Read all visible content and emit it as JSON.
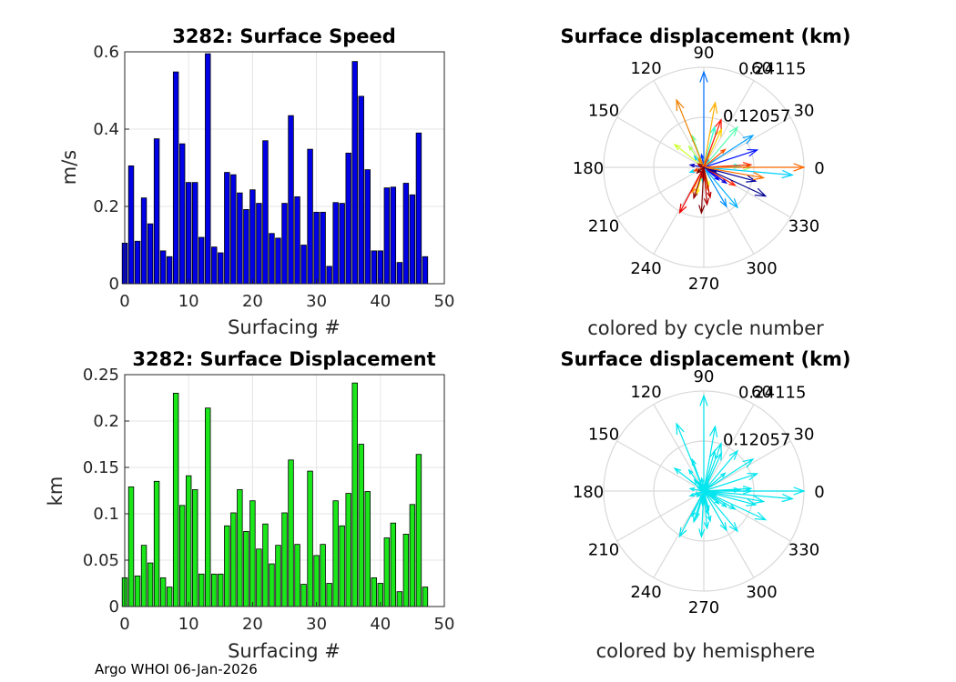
{
  "footer": "Argo WHOI 06-Jan-2026",
  "chart_data": [
    {
      "type": "bar",
      "title": "3282: Surface Speed",
      "xlabel": "Surfacing #",
      "ylabel": "m/s",
      "xlim": [
        0,
        50
      ],
      "ylim": [
        0,
        0.6
      ],
      "xticks": [
        "0",
        "10",
        "20",
        "30",
        "40",
        "50"
      ],
      "yticks": [
        "0",
        "0.2",
        "0.4",
        "0.6"
      ],
      "color": "#0000e6",
      "categories": [
        0,
        1,
        2,
        3,
        4,
        5,
        6,
        7,
        8,
        9,
        10,
        11,
        12,
        13,
        14,
        15,
        16,
        17,
        18,
        19,
        20,
        21,
        22,
        23,
        24,
        25,
        26,
        27,
        28,
        29,
        30,
        31,
        32,
        33,
        34,
        35,
        36,
        37,
        38,
        39,
        40,
        41,
        42,
        43,
        44,
        45,
        46,
        47
      ],
      "values": [
        0.105,
        0.305,
        0.11,
        0.222,
        0.155,
        0.375,
        0.085,
        0.07,
        0.548,
        0.362,
        0.262,
        0.262,
        0.12,
        0.595,
        0.095,
        0.08,
        0.288,
        0.282,
        0.235,
        0.192,
        0.243,
        0.208,
        0.37,
        0.13,
        0.118,
        0.208,
        0.435,
        0.225,
        0.1,
        0.348,
        0.185,
        0.185,
        0.045,
        0.21,
        0.208,
        0.338,
        0.575,
        0.485,
        0.295,
        0.085,
        0.085,
        0.248,
        0.25,
        0.055,
        0.26,
        0.23,
        0.39,
        0.07
      ]
    },
    {
      "type": "bar",
      "title": "3282: Surface Displacement",
      "xlabel": "Surfacing #",
      "ylabel": "km",
      "xlim": [
        0,
        50
      ],
      "ylim": [
        0,
        0.25
      ],
      "xticks": [
        "0",
        "10",
        "20",
        "30",
        "40",
        "50"
      ],
      "yticks": [
        "0",
        "0.05",
        "0.1",
        "0.15",
        "0.2",
        "0.25"
      ],
      "color": "#1ae61a",
      "categories": [
        0,
        1,
        2,
        3,
        4,
        5,
        6,
        7,
        8,
        9,
        10,
        11,
        12,
        13,
        14,
        15,
        16,
        17,
        18,
        19,
        20,
        21,
        22,
        23,
        24,
        25,
        26,
        27,
        28,
        29,
        30,
        31,
        32,
        33,
        34,
        35,
        36,
        37,
        38,
        39,
        40,
        41,
        42,
        43,
        44,
        45,
        46,
        47
      ],
      "values": [
        0.031,
        0.129,
        0.033,
        0.066,
        0.047,
        0.135,
        0.031,
        0.021,
        0.23,
        0.109,
        0.141,
        0.126,
        0.035,
        0.214,
        0.035,
        0.035,
        0.087,
        0.101,
        0.126,
        0.081,
        0.114,
        0.062,
        0.089,
        0.046,
        0.066,
        0.101,
        0.158,
        0.067,
        0.024,
        0.146,
        0.055,
        0.067,
        0.025,
        0.114,
        0.087,
        0.122,
        0.241,
        0.175,
        0.124,
        0.031,
        0.025,
        0.074,
        0.09,
        0.016,
        0.078,
        0.11,
        0.164,
        0.021
      ]
    },
    {
      "type": "polar-compass",
      "title": "Surface displacement (km)",
      "caption": "colored by cycle number",
      "rmax": 0.24115,
      "ring_labels": [
        "0.12057",
        "0.24115"
      ],
      "angle_labels": [
        "0",
        "30",
        "60",
        "90",
        "120",
        "150",
        "180",
        "210",
        "240",
        "270",
        "300",
        "330"
      ],
      "vectors": [
        {
          "r": 0.031,
          "angle": -20,
          "color": "#00008f"
        },
        {
          "r": 0.129,
          "angle": -15,
          "color": "#00009f"
        },
        {
          "r": 0.033,
          "angle": 170,
          "color": "#0000bf"
        },
        {
          "r": 0.066,
          "angle": -35,
          "color": "#0000df"
        },
        {
          "r": 0.047,
          "angle": -40,
          "color": "#0000ff"
        },
        {
          "r": 0.135,
          "angle": 18,
          "color": "#0010ff"
        },
        {
          "r": 0.031,
          "angle": 100,
          "color": "#0030ff"
        },
        {
          "r": 0.021,
          "angle": 60,
          "color": "#0050ff"
        },
        {
          "r": 0.23,
          "angle": 90,
          "color": "#0070ff"
        },
        {
          "r": 0.109,
          "angle": -60,
          "color": "#0090ff"
        },
        {
          "r": 0.141,
          "angle": 33,
          "color": "#00a0ff"
        },
        {
          "r": 0.126,
          "angle": -50,
          "color": "#00b0ff"
        },
        {
          "r": 0.035,
          "angle": 130,
          "color": "#00c0ff"
        },
        {
          "r": 0.214,
          "angle": -5,
          "color": "#00d0ff"
        },
        {
          "r": 0.035,
          "angle": 200,
          "color": "#00e0ff"
        },
        {
          "r": 0.035,
          "angle": -95,
          "color": "#00f0ff"
        },
        {
          "r": 0.087,
          "angle": 2,
          "color": "#10ffef"
        },
        {
          "r": 0.101,
          "angle": 75,
          "color": "#30ffcf"
        },
        {
          "r": 0.126,
          "angle": 50,
          "color": "#50ffaf"
        },
        {
          "r": 0.081,
          "angle": 110,
          "color": "#70ff8f"
        },
        {
          "r": 0.114,
          "angle": 0,
          "color": "#8fff70"
        },
        {
          "r": 0.062,
          "angle": 125,
          "color": "#afff50"
        },
        {
          "r": 0.089,
          "angle": 142,
          "color": "#cfff30"
        },
        {
          "r": 0.046,
          "angle": -75,
          "color": "#efff10"
        },
        {
          "r": 0.066,
          "angle": -105,
          "color": "#ffef00"
        },
        {
          "r": 0.101,
          "angle": 65,
          "color": "#ffcf00"
        },
        {
          "r": 0.158,
          "angle": 80,
          "color": "#ffaf00"
        },
        {
          "r": 0.067,
          "angle": -115,
          "color": "#ff9000"
        },
        {
          "r": 0.024,
          "angle": 120,
          "color": "#ff8000"
        },
        {
          "r": 0.146,
          "angle": -10,
          "color": "#ff7000"
        },
        {
          "r": 0.055,
          "angle": -80,
          "color": "#ff6000"
        },
        {
          "r": 0.067,
          "angle": 40,
          "color": "#ff5000"
        },
        {
          "r": 0.025,
          "angle": 200,
          "color": "#ff4000"
        },
        {
          "r": 0.114,
          "angle": 3,
          "color": "#ff3000"
        },
        {
          "r": 0.087,
          "angle": -30,
          "color": "#ff2000"
        },
        {
          "r": 0.122,
          "angle": 70,
          "color": "#ff1000"
        },
        {
          "r": 0.241,
          "angle": 0,
          "color": "#ff6a00"
        },
        {
          "r": 0.175,
          "angle": 112,
          "color": "#f08000"
        },
        {
          "r": 0.124,
          "angle": -118,
          "color": "#ef0000"
        },
        {
          "r": 0.031,
          "angle": -90,
          "color": "#df0000"
        },
        {
          "r": 0.025,
          "angle": -100,
          "color": "#cf0000"
        },
        {
          "r": 0.074,
          "angle": -78,
          "color": "#bf0000"
        },
        {
          "r": 0.09,
          "angle": -85,
          "color": "#af0000"
        },
        {
          "r": 0.016,
          "angle": 150,
          "color": "#9f0000"
        },
        {
          "r": 0.078,
          "angle": -108,
          "color": "#8f0000"
        },
        {
          "r": 0.11,
          "angle": -93,
          "color": "#800000"
        },
        {
          "r": 0.164,
          "angle": -25,
          "color": "#000090"
        },
        {
          "r": 0.021,
          "angle": -140,
          "color": "#700000"
        }
      ]
    },
    {
      "type": "polar-compass",
      "title": "Surface displacement (km)",
      "caption": "colored by hemisphere",
      "rmax": 0.24115,
      "ring_labels": [
        "0.12057",
        "0.24115"
      ],
      "angle_labels": [
        "0",
        "30",
        "60",
        "90",
        "120",
        "150",
        "180",
        "210",
        "240",
        "270",
        "300",
        "330"
      ],
      "vector_color": "#00e5ee",
      "vectors": [
        {
          "r": 0.031,
          "angle": -20
        },
        {
          "r": 0.129,
          "angle": -15
        },
        {
          "r": 0.033,
          "angle": 170
        },
        {
          "r": 0.066,
          "angle": -35
        },
        {
          "r": 0.047,
          "angle": -40
        },
        {
          "r": 0.135,
          "angle": 18
        },
        {
          "r": 0.031,
          "angle": 100
        },
        {
          "r": 0.021,
          "angle": 60
        },
        {
          "r": 0.23,
          "angle": 90
        },
        {
          "r": 0.109,
          "angle": -60
        },
        {
          "r": 0.141,
          "angle": 33
        },
        {
          "r": 0.126,
          "angle": -50
        },
        {
          "r": 0.035,
          "angle": 130
        },
        {
          "r": 0.214,
          "angle": -5
        },
        {
          "r": 0.035,
          "angle": 200
        },
        {
          "r": 0.035,
          "angle": -95
        },
        {
          "r": 0.087,
          "angle": 2
        },
        {
          "r": 0.101,
          "angle": 75
        },
        {
          "r": 0.126,
          "angle": 50
        },
        {
          "r": 0.081,
          "angle": 110
        },
        {
          "r": 0.114,
          "angle": 0
        },
        {
          "r": 0.062,
          "angle": 125
        },
        {
          "r": 0.089,
          "angle": 142
        },
        {
          "r": 0.046,
          "angle": -75
        },
        {
          "r": 0.066,
          "angle": -105
        },
        {
          "r": 0.101,
          "angle": 65
        },
        {
          "r": 0.158,
          "angle": 80
        },
        {
          "r": 0.067,
          "angle": -115
        },
        {
          "r": 0.024,
          "angle": 120
        },
        {
          "r": 0.146,
          "angle": -10
        },
        {
          "r": 0.055,
          "angle": -80
        },
        {
          "r": 0.067,
          "angle": 40
        },
        {
          "r": 0.025,
          "angle": 200
        },
        {
          "r": 0.114,
          "angle": 3
        },
        {
          "r": 0.087,
          "angle": -30
        },
        {
          "r": 0.122,
          "angle": 70
        },
        {
          "r": 0.241,
          "angle": 0
        },
        {
          "r": 0.175,
          "angle": 112
        },
        {
          "r": 0.124,
          "angle": -118
        },
        {
          "r": 0.031,
          "angle": -90
        },
        {
          "r": 0.025,
          "angle": -100
        },
        {
          "r": 0.074,
          "angle": -78
        },
        {
          "r": 0.09,
          "angle": -85
        },
        {
          "r": 0.016,
          "angle": 150
        },
        {
          "r": 0.078,
          "angle": -108
        },
        {
          "r": 0.11,
          "angle": -93
        },
        {
          "r": 0.164,
          "angle": -25
        },
        {
          "r": 0.021,
          "angle": -140
        }
      ]
    }
  ]
}
